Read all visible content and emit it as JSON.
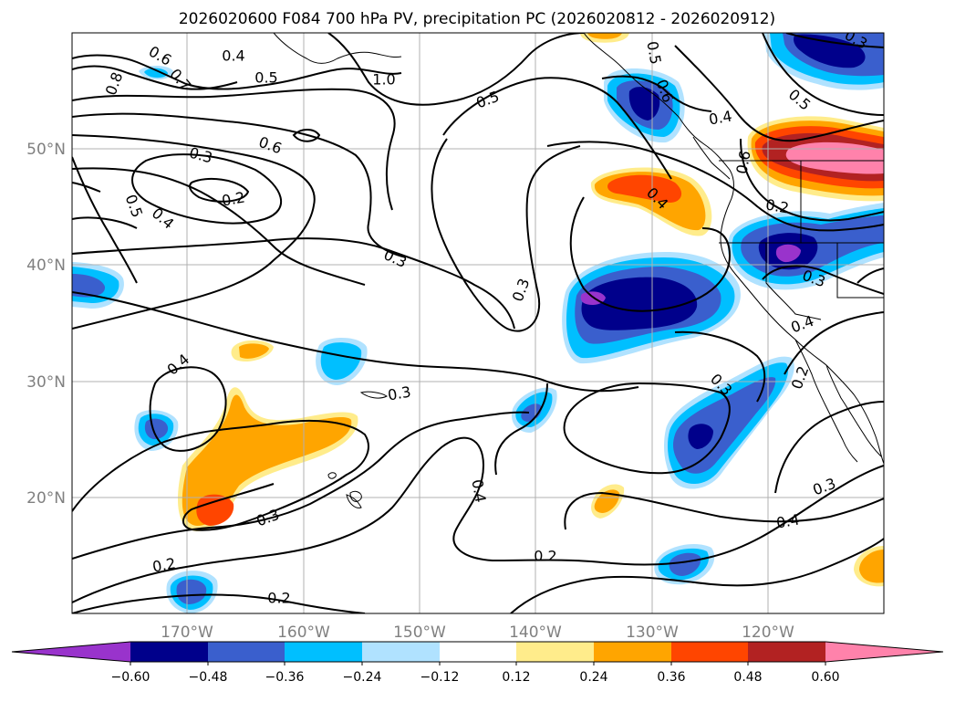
{
  "title": "2026020600 F084 700 hPa PV, precipitation PC (2026020812 - 2026020912)",
  "chart_data": {
    "type": "map",
    "variable_contours": "700 hPa PV",
    "variable_fill": "precipitation PC",
    "lon_ticks": [
      "170°W",
      "160°W",
      "150°W",
      "140°W",
      "130°W",
      "120°W"
    ],
    "lat_ticks": [
      "50°N",
      "40°N",
      "30°N",
      "20°N"
    ],
    "colorbar": {
      "ticks": [
        "−0.60",
        "−0.48",
        "−0.36",
        "−0.24",
        "−0.12",
        "0.12",
        "0.24",
        "0.36",
        "0.48",
        "0.60"
      ],
      "colors": [
        "#9933cc",
        "#00008b",
        "#3a5fcd",
        "#00bfff",
        "#b0e2ff",
        "#ffffff",
        "#ffec8b",
        "#ffa500",
        "#ff4500",
        "#b22222",
        "#ff82ab"
      ]
    },
    "contour_labels": [
      "0.4",
      "0.5",
      "0.6",
      "0.7",
      "0.8",
      "1.0",
      "0.3",
      "0.2",
      "0.6",
      "0.5",
      "0.4",
      "0.3",
      "0.3",
      "0.5",
      "0.4",
      "0.3",
      "0.4",
      "0.3",
      "0.2",
      "0.2",
      "0.2",
      "0.3",
      "0.4",
      "0.3",
      "0.2",
      "0.4",
      "0.3",
      "0.2",
      "0.6",
      "0.4",
      "0.5",
      "0.6",
      "0.4",
      "0.5",
      "0.3"
    ]
  }
}
